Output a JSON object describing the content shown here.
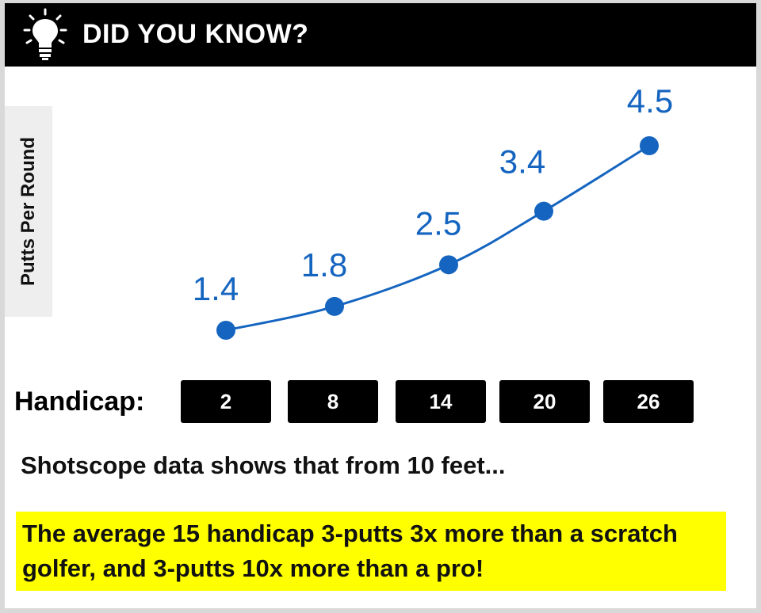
{
  "header": {
    "title": "DID YOU KNOW?",
    "icon": "lightbulb-icon"
  },
  "chart_data": {
    "type": "line",
    "title": "",
    "ylabel": "Putts Per Round",
    "xlabel": "Handicap:",
    "categories": [
      "2",
      "8",
      "14",
      "20",
      "26"
    ],
    "values": [
      1.4,
      1.8,
      2.5,
      3.4,
      4.5
    ],
    "data_labels": [
      "1.4",
      "1.8",
      "2.5",
      "3.4",
      "4.5"
    ],
    "grid": false,
    "legend": "none",
    "color": "#1565c0"
  },
  "note": "Shotscope data shows that from 10 feet...",
  "highlight": "The average 15 handicap 3-putts 3x more than a scratch golfer, and 3-putts 10x more than a pro!",
  "colors": {
    "header_bg": "#000000",
    "highlight_bg": "#ffff00",
    "line": "#1565c0"
  }
}
